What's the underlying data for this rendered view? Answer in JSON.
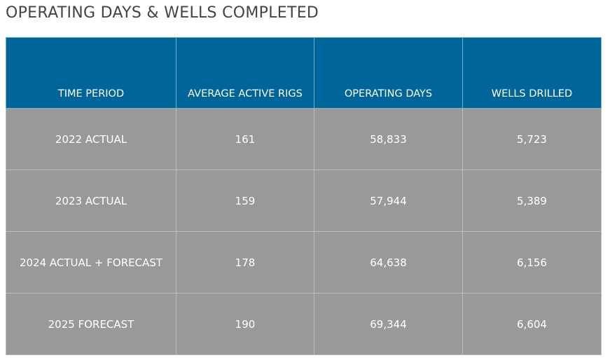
{
  "header": {
    "title": "OPERATING DAYS & WELLS COMPLETED"
  },
  "table": {
    "columns": [
      "TIME PERIOD",
      "AVERAGE ACTIVE RIGS",
      "OPERATING DAYS",
      "WELLS DRILLED"
    ],
    "rows": [
      [
        "2022 ACTUAL",
        "161",
        "58,833",
        "5,723"
      ],
      [
        "2023 ACTUAL",
        "159",
        "57,944",
        "5,389"
      ],
      [
        "2024 ACTUAL + FORECAST",
        "178",
        "64,638",
        "6,156"
      ],
      [
        "2025 FORECAST",
        "190",
        "69,344",
        "6,604"
      ]
    ]
  }
}
